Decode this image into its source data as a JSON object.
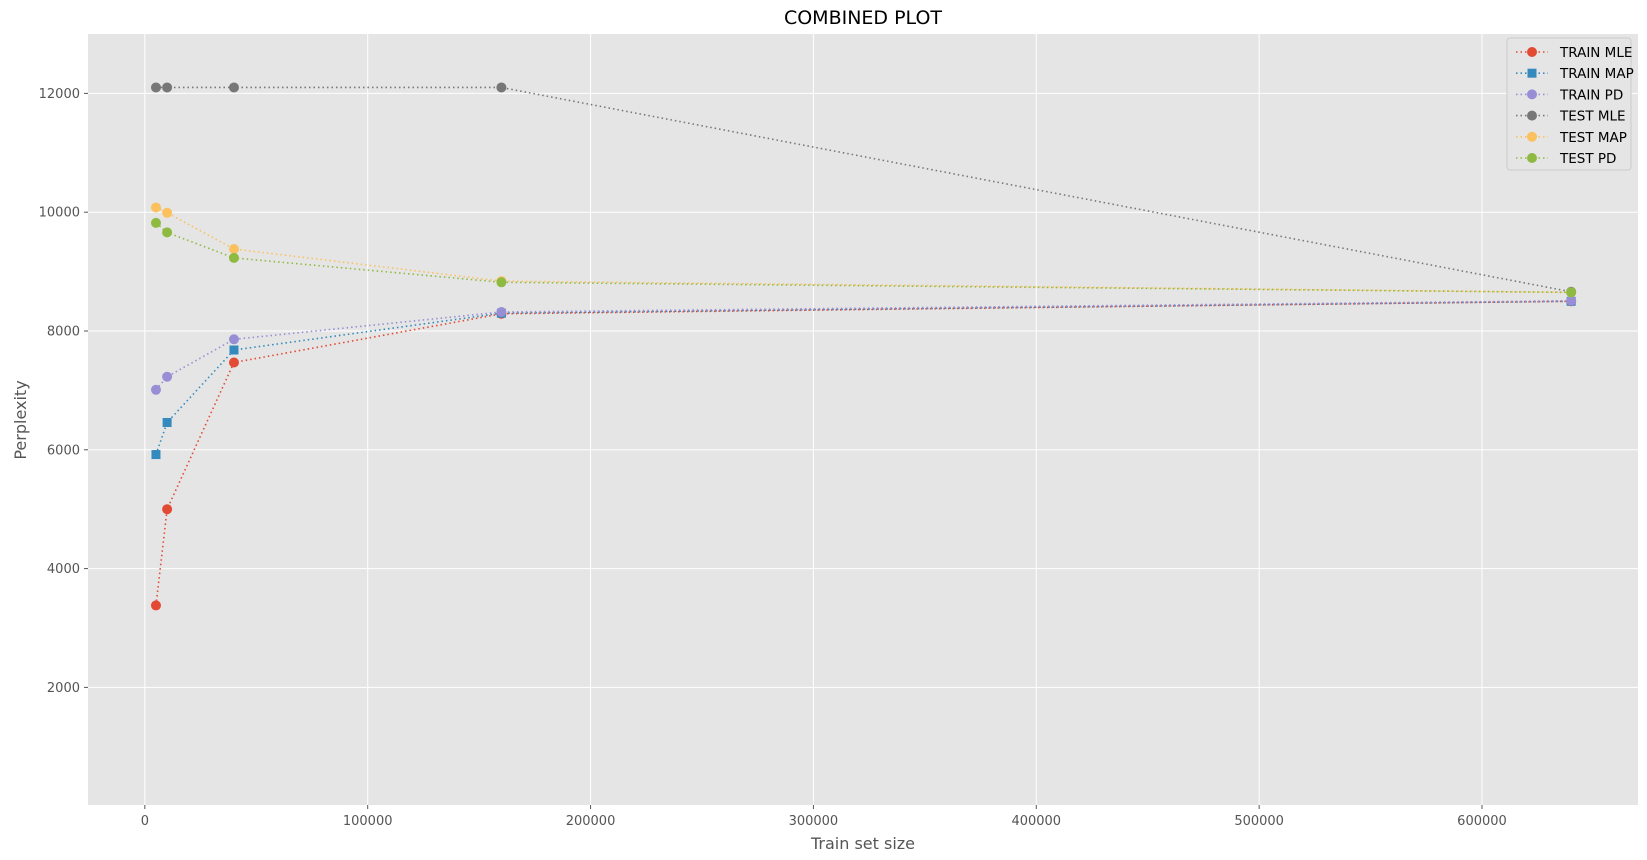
{
  "chart_data": {
    "type": "line",
    "title": "COMBINED PLOT",
    "xlabel": "Train set size",
    "ylabel": "Perplexity",
    "xlim": [
      -25500,
      670000
    ],
    "ylim": [
      20,
      13000
    ],
    "xticks": [
      0,
      100000,
      200000,
      300000,
      400000,
      500000,
      600000
    ],
    "yticks": [
      2000,
      4000,
      6000,
      8000,
      10000,
      12000
    ],
    "grid": true,
    "legend_position": "top-right",
    "x": [
      5000,
      10000,
      40000,
      160000,
      640000
    ],
    "series": [
      {
        "name": "TRAIN MLE",
        "color": "#E24A33",
        "marker": "circle",
        "values": [
          3380,
          5000,
          7470,
          8290,
          8500
        ]
      },
      {
        "name": "TRAIN MAP",
        "color": "#348ABD",
        "marker": "square",
        "values": [
          5920,
          6460,
          7680,
          8300,
          8500
        ]
      },
      {
        "name": "TRAIN PD",
        "color": "#988ED5",
        "marker": "circle",
        "values": [
          7010,
          7230,
          7860,
          8320,
          8510
        ]
      },
      {
        "name": "TEST MLE",
        "color": "#777777",
        "marker": "circle",
        "values": [
          12100,
          12100,
          12100,
          12100,
          8660
        ]
      },
      {
        "name": "TEST MAP",
        "color": "#FBC15E",
        "marker": "circle",
        "values": [
          10080,
          9990,
          9380,
          8840,
          8650
        ]
      },
      {
        "name": "TEST PD",
        "color": "#8EBA42",
        "marker": "circle",
        "values": [
          9820,
          9660,
          9230,
          8820,
          8650
        ]
      }
    ]
  }
}
